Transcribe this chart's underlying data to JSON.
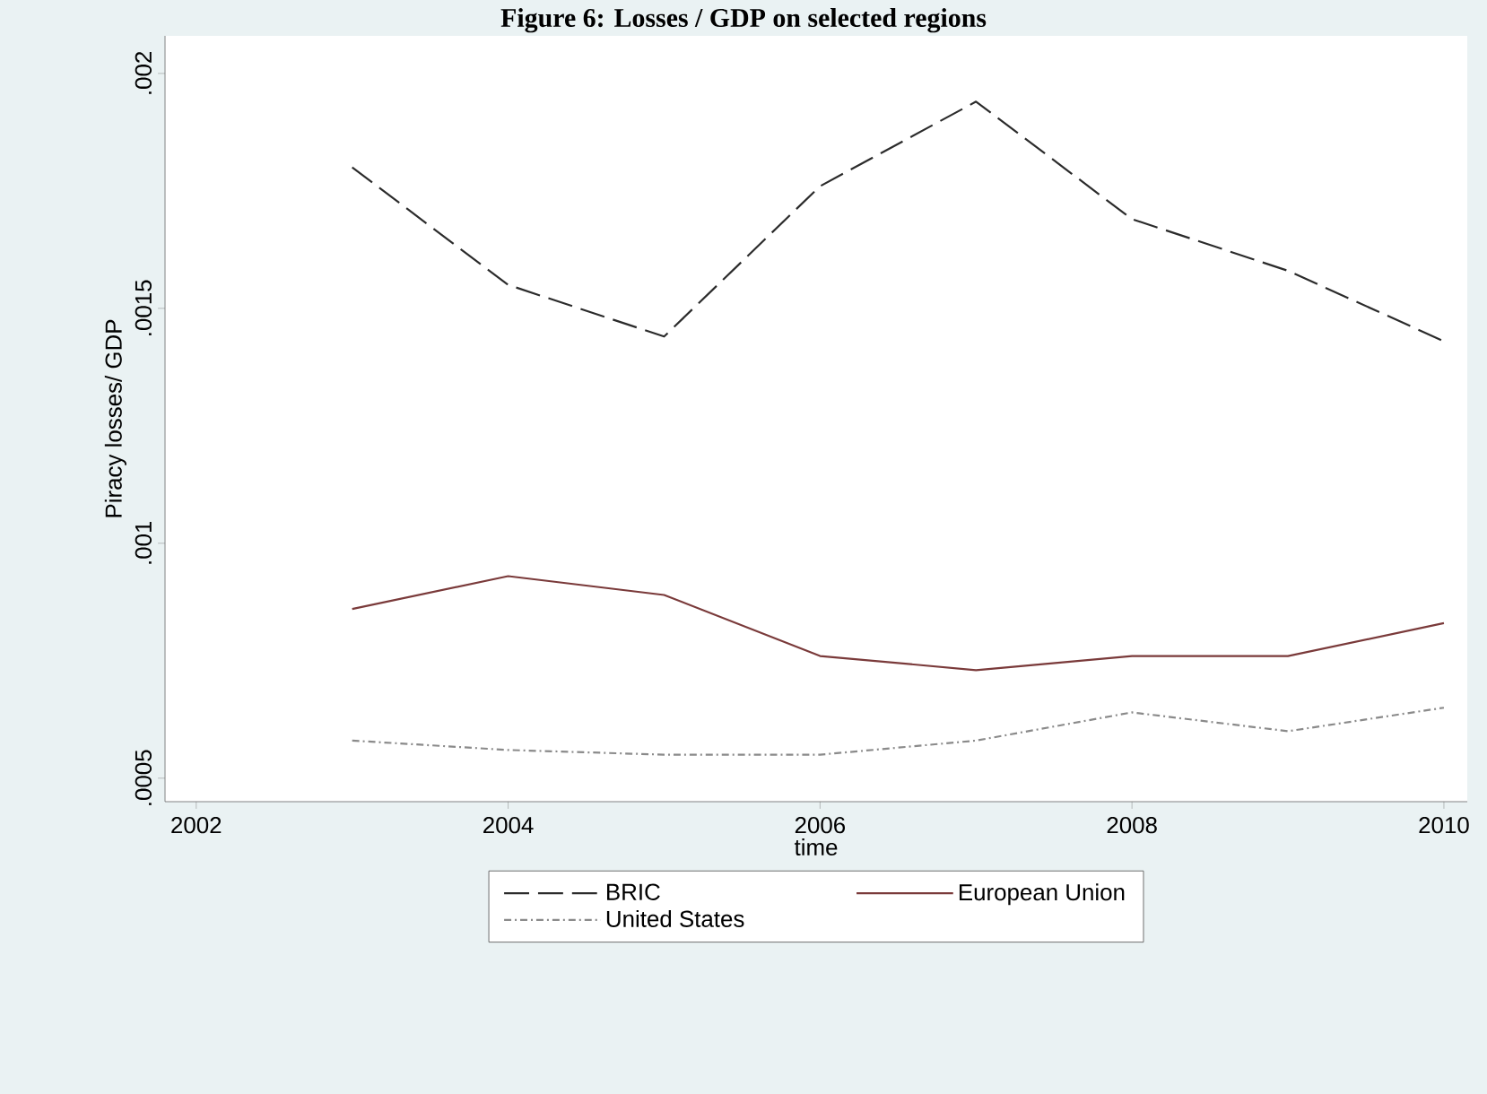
{
  "chart_data": {
    "type": "line",
    "title": "Figure 6: Losses / GDP on selected regions",
    "xlabel": "time",
    "ylabel": "Piracy losses/ GDP",
    "x": [
      2003,
      2004,
      2005,
      2006,
      2007,
      2008,
      2009,
      2010
    ],
    "series": [
      {
        "name": "BRIC",
        "color": "#2b2b2b",
        "line_style": "dashed",
        "values": [
          0.0018,
          0.00155,
          0.00144,
          0.00176,
          0.00194,
          0.00169,
          0.00158,
          0.00143
        ]
      },
      {
        "name": "European Union",
        "color": "#7a3a3a",
        "line_style": "solid",
        "values": [
          0.00086,
          0.00093,
          0.00089,
          0.00076,
          0.00073,
          0.00076,
          0.00076,
          0.00083
        ]
      },
      {
        "name": "United States",
        "color": "#8a8a8a",
        "line_style": "dotted",
        "values": [
          0.00058,
          0.00056,
          0.00055,
          0.00055,
          0.00058,
          0.00064,
          0.0006,
          0.00065
        ]
      }
    ],
    "xlim": [
      2001.8,
      2010.15
    ],
    "ylim": [
      0.00045,
      0.00208
    ],
    "xticks": [
      2002,
      2004,
      2006,
      2008,
      2010
    ],
    "yticks": [
      {
        "value": 0.0005,
        "label": ".0005"
      },
      {
        "value": 0.001,
        "label": ".001"
      },
      {
        "value": 0.0015,
        "label": ".0015"
      },
      {
        "value": 0.002,
        "label": ".002"
      }
    ],
    "legend": "bottom",
    "grid": false,
    "marker": "none"
  }
}
